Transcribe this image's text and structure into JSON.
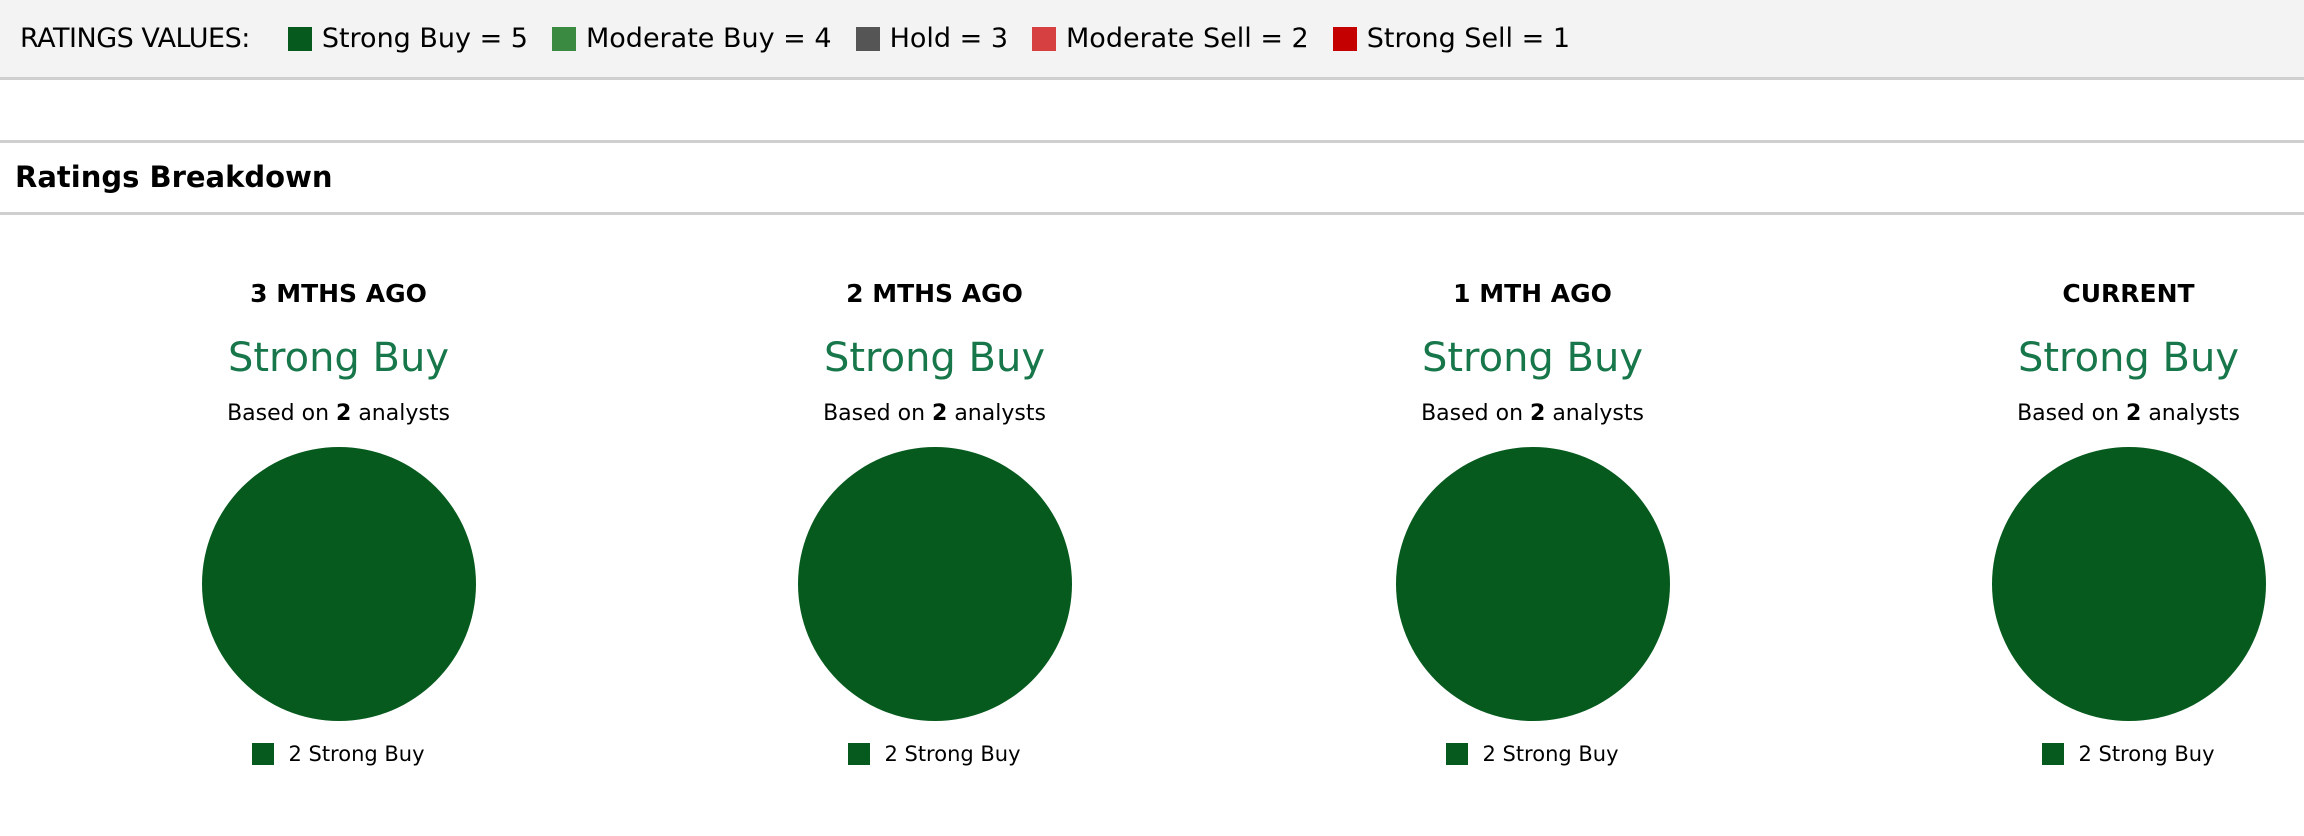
{
  "header": {
    "label": "RATINGS VALUES:",
    "legend": [
      {
        "label": "Strong Buy = 5",
        "color": "#065a1e"
      },
      {
        "label": "Moderate Buy = 4",
        "color": "#3a8a42"
      },
      {
        "label": "Hold = 3",
        "color": "#555555"
      },
      {
        "label": "Moderate Sell = 2",
        "color": "#d64040"
      },
      {
        "label": "Strong Sell = 1",
        "color": "#c40000"
      }
    ]
  },
  "section_title": "Ratings Breakdown",
  "chart_data": [
    {
      "type": "pie",
      "title": "3 MTHS AGO",
      "rating": "Strong Buy",
      "based_prefix": "Based on",
      "analysts": "2",
      "based_suffix": "analysts",
      "slices": [
        {
          "label": "Strong Buy",
          "value": 2,
          "color": "#065a1e"
        }
      ],
      "legend": [
        "2 Strong Buy"
      ]
    },
    {
      "type": "pie",
      "title": "2 MTHS AGO",
      "rating": "Strong Buy",
      "based_prefix": "Based on",
      "analysts": "2",
      "based_suffix": "analysts",
      "slices": [
        {
          "label": "Strong Buy",
          "value": 2,
          "color": "#065a1e"
        }
      ],
      "legend": [
        "2 Strong Buy"
      ]
    },
    {
      "type": "pie",
      "title": "1 MTH AGO",
      "rating": "Strong Buy",
      "based_prefix": "Based on",
      "analysts": "2",
      "based_suffix": "analysts",
      "slices": [
        {
          "label": "Strong Buy",
          "value": 2,
          "color": "#065a1e"
        }
      ],
      "legend": [
        "2 Strong Buy"
      ]
    },
    {
      "type": "pie",
      "title": "CURRENT",
      "rating": "Strong Buy",
      "based_prefix": "Based on",
      "analysts": "2",
      "based_suffix": "analysts",
      "slices": [
        {
          "label": "Strong Buy",
          "value": 2,
          "color": "#065a1e"
        }
      ],
      "legend": [
        "2 Strong Buy"
      ]
    }
  ],
  "rating_color": "#17774a"
}
